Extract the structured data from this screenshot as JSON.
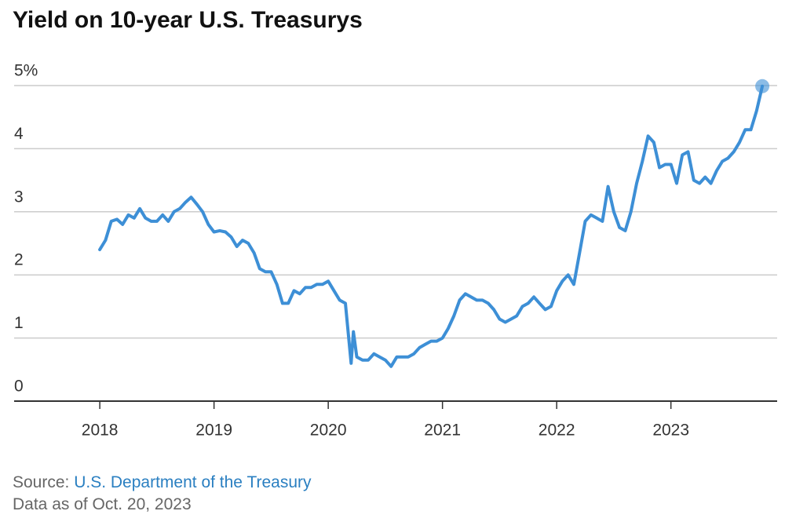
{
  "chart_data": {
    "type": "line",
    "title": "Yield on 10-year U.S. Treasurys",
    "x": [
      2018.0,
      2018.05,
      2018.1,
      2018.15,
      2018.2,
      2018.25,
      2018.3,
      2018.35,
      2018.4,
      2018.45,
      2018.5,
      2018.55,
      2018.6,
      2018.65,
      2018.7,
      2018.75,
      2018.8,
      2018.85,
      2018.9,
      2018.95,
      2019.0,
      2019.05,
      2019.1,
      2019.15,
      2019.2,
      2019.25,
      2019.3,
      2019.35,
      2019.4,
      2019.45,
      2019.5,
      2019.55,
      2019.6,
      2019.65,
      2019.7,
      2019.75,
      2019.8,
      2019.85,
      2019.9,
      2019.95,
      2020.0,
      2020.05,
      2020.1,
      2020.15,
      2020.2,
      2020.22,
      2020.25,
      2020.3,
      2020.35,
      2020.4,
      2020.45,
      2020.5,
      2020.55,
      2020.6,
      2020.65,
      2020.7,
      2020.75,
      2020.8,
      2020.85,
      2020.9,
      2020.95,
      2021.0,
      2021.05,
      2021.1,
      2021.15,
      2021.2,
      2021.25,
      2021.3,
      2021.35,
      2021.4,
      2021.45,
      2021.5,
      2021.55,
      2021.6,
      2021.65,
      2021.7,
      2021.75,
      2021.8,
      2021.85,
      2021.9,
      2021.95,
      2022.0,
      2022.05,
      2022.1,
      2022.15,
      2022.2,
      2022.25,
      2022.3,
      2022.35,
      2022.4,
      2022.45,
      2022.5,
      2022.55,
      2022.6,
      2022.65,
      2022.7,
      2022.75,
      2022.8,
      2022.85,
      2022.9,
      2022.95,
      2023.0,
      2023.05,
      2023.1,
      2023.15,
      2023.2,
      2023.25,
      2023.3,
      2023.35,
      2023.4,
      2023.45,
      2023.5,
      2023.55,
      2023.6,
      2023.65,
      2023.7,
      2023.75,
      2023.8
    ],
    "series": [
      {
        "name": "10-year yield",
        "color": "#3d8fd6",
        "values": [
          2.4,
          2.55,
          2.85,
          2.88,
          2.8,
          2.95,
          2.9,
          3.05,
          2.9,
          2.85,
          2.85,
          2.95,
          2.85,
          3.0,
          3.05,
          3.15,
          3.23,
          3.12,
          3.0,
          2.8,
          2.68,
          2.7,
          2.68,
          2.6,
          2.45,
          2.55,
          2.5,
          2.35,
          2.1,
          2.05,
          2.05,
          1.85,
          1.55,
          1.55,
          1.75,
          1.7,
          1.8,
          1.8,
          1.85,
          1.85,
          1.9,
          1.75,
          1.6,
          1.55,
          0.6,
          1.1,
          0.7,
          0.65,
          0.65,
          0.75,
          0.7,
          0.65,
          0.55,
          0.7,
          0.7,
          0.7,
          0.75,
          0.85,
          0.9,
          0.95,
          0.95,
          1.0,
          1.15,
          1.35,
          1.6,
          1.7,
          1.65,
          1.6,
          1.6,
          1.55,
          1.45,
          1.3,
          1.25,
          1.3,
          1.35,
          1.5,
          1.55,
          1.65,
          1.55,
          1.45,
          1.5,
          1.75,
          1.9,
          2.0,
          1.85,
          2.35,
          2.85,
          2.95,
          2.9,
          2.85,
          3.4,
          3.0,
          2.75,
          2.7,
          3.0,
          3.45,
          3.8,
          4.2,
          4.1,
          3.7,
          3.75,
          3.75,
          3.45,
          3.9,
          3.95,
          3.5,
          3.45,
          3.55,
          3.45,
          3.65,
          3.8,
          3.85,
          3.95,
          4.1,
          4.3,
          4.3,
          4.6,
          4.99
        ]
      }
    ],
    "xlim": [
      2017.25,
      2023.93
    ],
    "xticks": [
      2018,
      2019,
      2020,
      2021,
      2022,
      2023
    ],
    "ylim": [
      0,
      5
    ],
    "yticks": [
      0,
      1,
      2,
      3,
      4,
      {
        "value": 5,
        "label": "5%"
      }
    ],
    "grid": true,
    "end_marker": true
  },
  "footer": {
    "source_label": "Source:",
    "source": "U.S. Department of the Treasury",
    "note": "Data as of Oct. 20, 2023"
  }
}
